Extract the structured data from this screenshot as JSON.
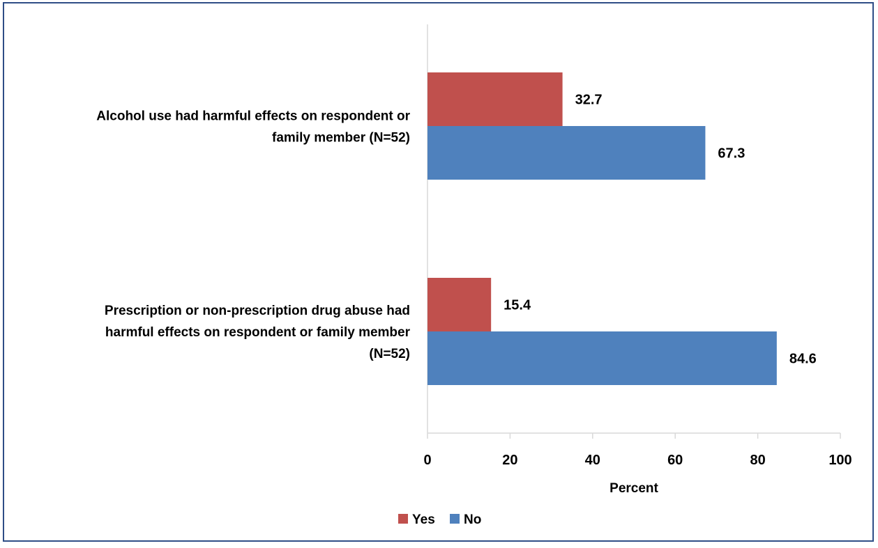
{
  "chart_data": {
    "type": "bar",
    "orientation": "horizontal",
    "title": "",
    "xlabel": "Percent",
    "ylabel": "",
    "xlim": [
      0,
      100
    ],
    "ticks": [
      "0",
      "20",
      "40",
      "60",
      "80",
      "100"
    ],
    "grid": false,
    "legend_position": "bottom",
    "categories": [
      [
        "Alcohol use had harmful effects on respondent or",
        "family member (N=52)"
      ],
      [
        "Prescription or non-prescription drug abuse had",
        "harmful effects on respondent or family member",
        "(N=52)"
      ]
    ],
    "series": [
      {
        "name": "Yes",
        "color": "#c0504d",
        "values": [
          32.7,
          15.4
        ],
        "labels": [
          "32.7",
          "15.4"
        ]
      },
      {
        "name": "No",
        "color": "#4f81bd",
        "values": [
          67.3,
          84.6
        ],
        "labels": [
          "67.3",
          "84.6"
        ]
      }
    ]
  }
}
